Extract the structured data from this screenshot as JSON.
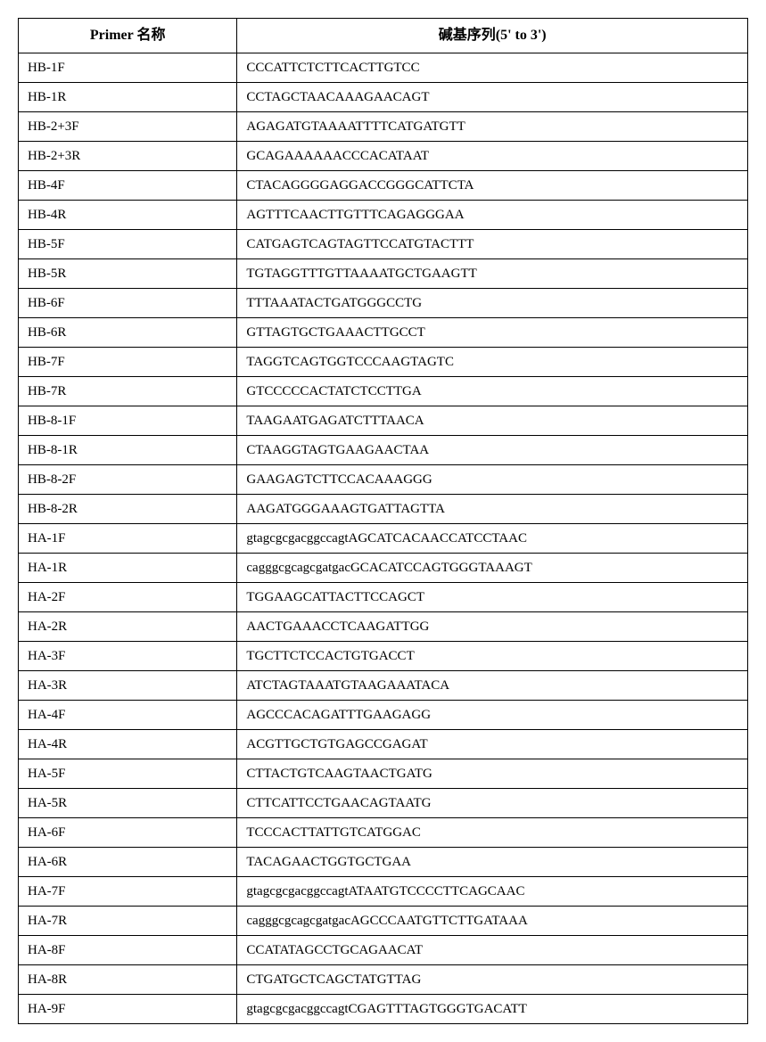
{
  "table": {
    "columns": [
      "Primer 名称",
      "碱基序列(5' to 3')"
    ],
    "col_widths": [
      "30%",
      "70%"
    ],
    "header_fontsize": 16,
    "cell_fontsize": 15,
    "border_color": "#000000",
    "background_color": "#ffffff",
    "rows": [
      {
        "name": "HB-1F",
        "seq": "CCCATTCTCTTCACTTGTCC"
      },
      {
        "name": "HB-1R",
        "seq": "CCTAGCTAACAAAGAACAGT"
      },
      {
        "name": "HB-2+3F",
        "seq": "AGAGATGTAAAATTTTCATGATGTT"
      },
      {
        "name": "HB-2+3R",
        "seq": "GCAGAAAAAACCCACATAAT"
      },
      {
        "name": "HB-4F",
        "seq": "CTACAGGGGAGGACCGGGCATTCTA"
      },
      {
        "name": "HB-4R",
        "seq": "AGTTTCAACTTGTTTCAGAGGGAA"
      },
      {
        "name": "HB-5F",
        "seq": "CATGAGTCAGTAGTTCCATGTACTTT"
      },
      {
        "name": "HB-5R",
        "seq": "TGTAGGTTTGTTAAAATGCTGAAGTT"
      },
      {
        "name": "HB-6F",
        "seq": "TTTAAATACTGATGGGCCTG"
      },
      {
        "name": "HB-6R",
        "seq": "GTTAGTGCTGAAACTTGCCT"
      },
      {
        "name": "HB-7F",
        "seq": "TAGGTCAGTGGTCCCAAGTAGTC"
      },
      {
        "name": "HB-7R",
        "seq": "GTCCCCCACTATCTCCTTGA"
      },
      {
        "name": "HB-8-1F",
        "seq": "TAAGAATGAGATCTTTAACA"
      },
      {
        "name": "HB-8-1R",
        "seq": "CTAAGGTAGTGAAGAACTAA"
      },
      {
        "name": "HB-8-2F",
        "seq": "GAAGAGTCTTCCACAAAGGG"
      },
      {
        "name": "HB-8-2R",
        "seq": "AAGATGGGAAAGTGATTAGTTA"
      },
      {
        "name": "HA-1F",
        "seq": "gtagcgcgacggccagtAGCATCACAACCATCCTAAC"
      },
      {
        "name": "HA-1R",
        "seq": "cagggcgcagcgatgacGCACATCCAGTGGGTAAAGT"
      },
      {
        "name": "HA-2F",
        "seq": "TGGAAGCATTACTTCCAGCT"
      },
      {
        "name": "HA-2R",
        "seq": "AACTGAAACCTCAAGATTGG"
      },
      {
        "name": "HA-3F",
        "seq": "TGCTTCTCCACTGTGACCT"
      },
      {
        "name": "HA-3R",
        "seq": "ATCTAGTAAATGTAAGAAATACA"
      },
      {
        "name": "HA-4F",
        "seq": "AGCCCACAGATTTGAAGAGG"
      },
      {
        "name": "HA-4R",
        "seq": "ACGTTGCTGTGAGCCGAGAT"
      },
      {
        "name": "HA-5F",
        "seq": "CTTACTGTCAAGTAACTGATG"
      },
      {
        "name": "HA-5R",
        "seq": "CTTCATTCCTGAACAGTAATG"
      },
      {
        "name": "HA-6F",
        "seq": "TCCCACTTATTGTCATGGAC"
      },
      {
        "name": "HA-6R",
        "seq": "TACAGAACTGGTGCTGAA"
      },
      {
        "name": "HA-7F",
        "seq": "gtagcgcgacggccagtATAATGTCCCCTTCAGCAAC"
      },
      {
        "name": "HA-7R",
        "seq": "cagggcgcagcgatgacAGCCCAATGTTCTTGATAAA"
      },
      {
        "name": "HA-8F",
        "seq": "CCATATAGCCTGCAGAACAT"
      },
      {
        "name": "HA-8R",
        "seq": "CTGATGCTCAGCTATGTTAG"
      },
      {
        "name": "HA-9F",
        "seq": "gtagcgcgacggccagtCGAGTTTAGTGGGTGACATT"
      }
    ]
  }
}
